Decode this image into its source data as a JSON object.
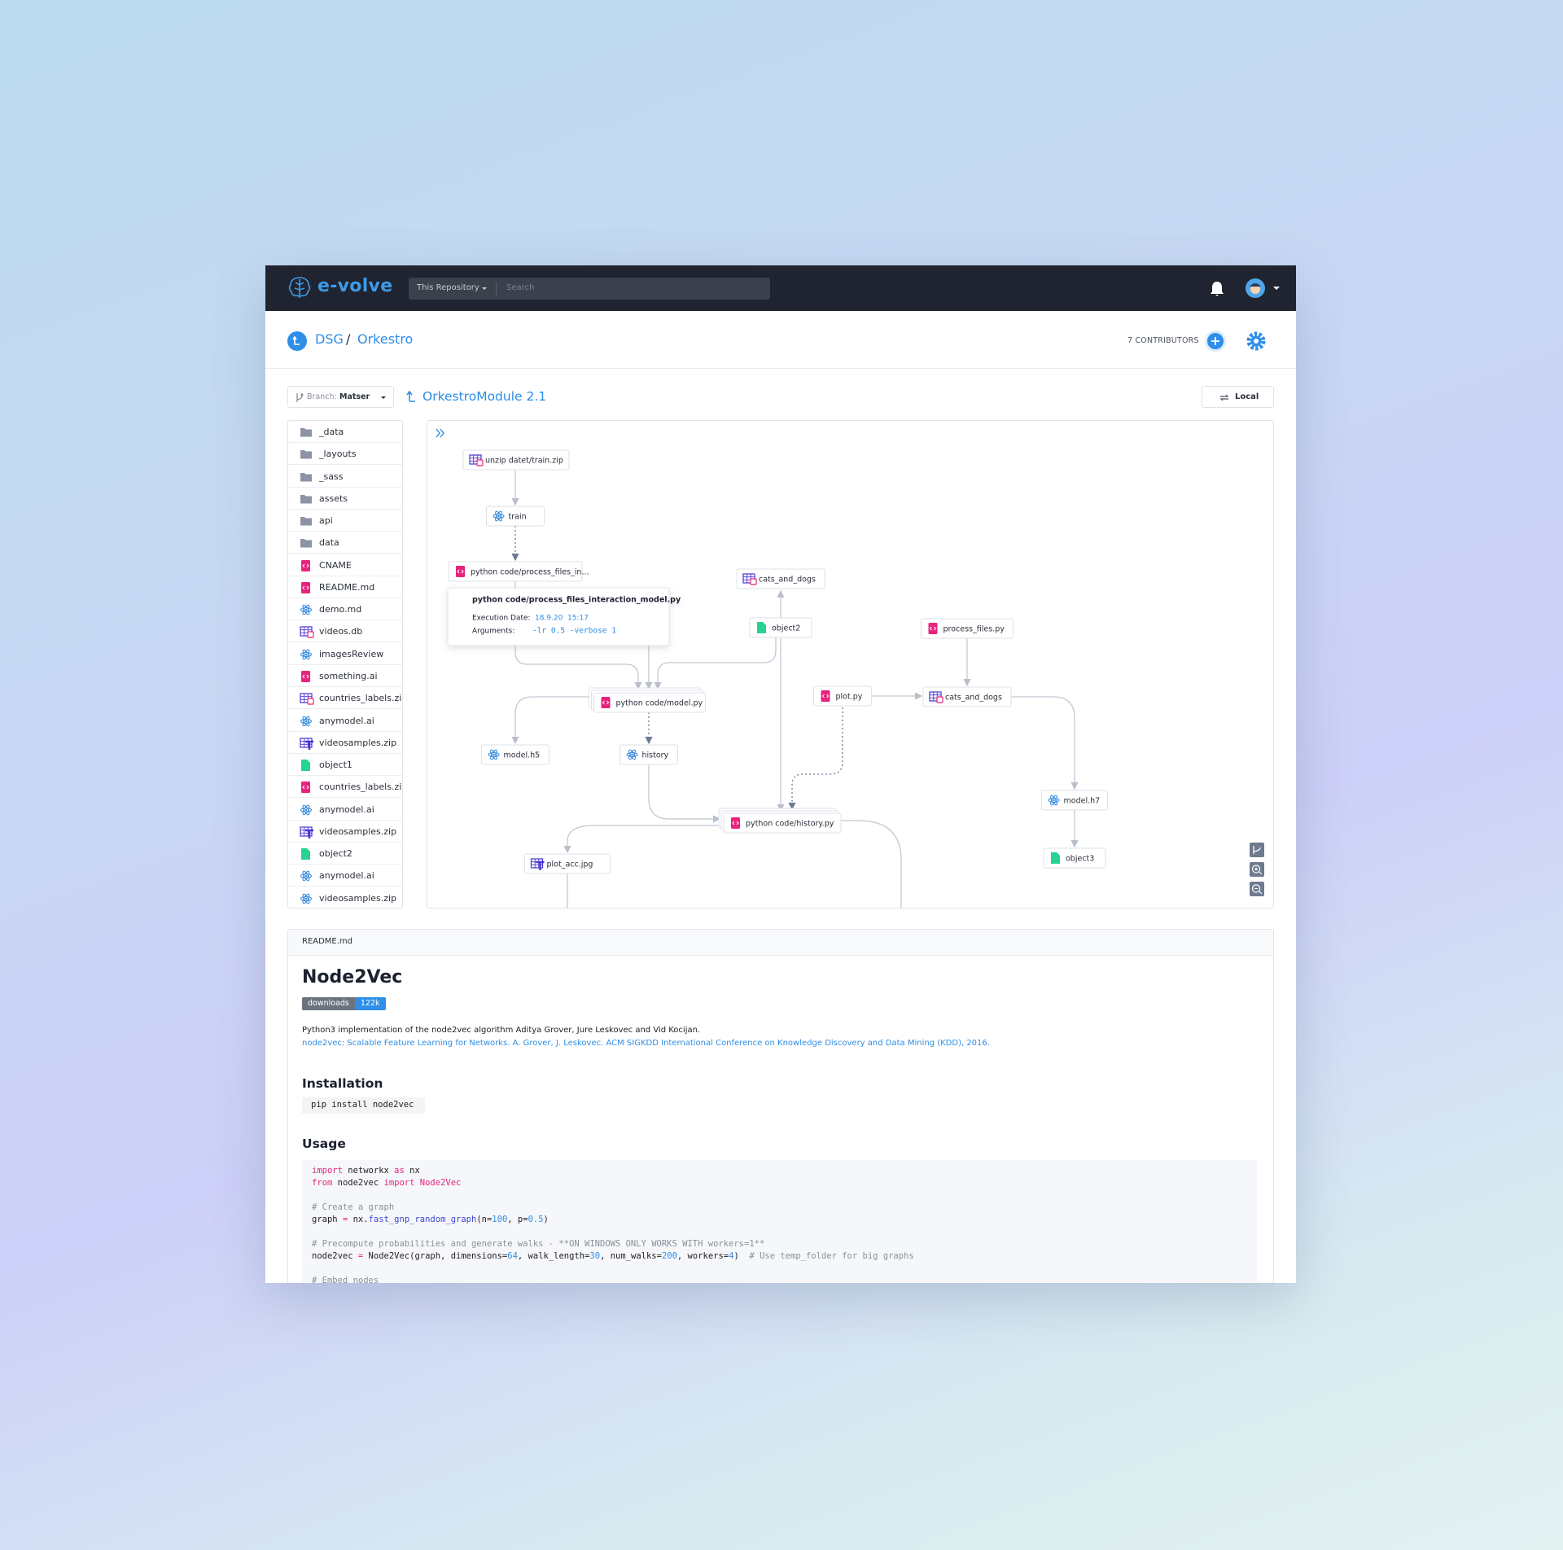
{
  "navbar": {
    "brand": "e-volve",
    "scope": "This Repository",
    "search_placeholder": "Search"
  },
  "breadcrumb": {
    "owner": "DSG",
    "separator": "/",
    "repo": "Orkestro"
  },
  "contributors": "7 CONTRIBUTORS",
  "branch": {
    "label": "Branch:",
    "name": "Matser"
  },
  "module": "OrkestroModule 2.1",
  "mode_button": "Local",
  "files": [
    "_data",
    "_layouts",
    "_sass",
    "assets",
    "api",
    "data",
    "CNAME",
    "README.md",
    "demo.md",
    "videos.db",
    "imagesReview",
    "something.ai",
    "countries_labels.zip",
    "anymodel.ai",
    "videosamples.zip",
    "object1",
    "countries_labels.zip",
    "anymodel.ai",
    "videosamples.zip",
    "object2",
    "anymodel.ai",
    "videosamples.zip"
  ],
  "graph": {
    "nodes": [
      "unzip datet/train.zip",
      "train",
      "python code/process_files_in...",
      "cats_and_dogs",
      "object2",
      "process_files.py",
      "python code/model.py",
      "plot.py",
      "cats_and_dogs",
      "model.h5",
      "history",
      "model.h7",
      "python code/history.py",
      "object3",
      "plot_acc.jpg"
    ],
    "tooltip": {
      "title": "python code/process_files_interaction_model.py",
      "date_label": "Execution Date:",
      "date": "18.9.20  15:17",
      "args_label": "Arguments:",
      "args": "-lr 0.5 -verbose 1"
    }
  },
  "readme": {
    "filename": "README.md",
    "title": "Node2Vec",
    "badge": {
      "label": "downloads",
      "value": "122k"
    },
    "description": "Python3 implementation of the node2vec algorithm Aditya Grover, Jure Leskovec and Vid Kocijan.",
    "reference": "node2vec: Scalable Feature Learning for Networks. A. Grover, J. Leskovec. ACM SIGKDD International Conference on Knowledge Discovery and Data Mining (KDD), 2016.",
    "install_heading": "Installation",
    "install_command": "pip install node2vec",
    "usage_heading": "Usage",
    "code": [
      [
        {
          "text": "import",
          "color": "#e0267d"
        },
        {
          "text": " networkx "
        },
        {
          "text": "as",
          "color": "#e0267d"
        },
        {
          "text": " nx"
        }
      ],
      [
        {
          "text": "from",
          "color": "#e0267d"
        },
        {
          "text": " node2vec "
        },
        {
          "text": "import",
          "color": "#e0267d"
        },
        {
          "text": " "
        },
        {
          "text": "Node2Vec",
          "color": "#e0267d"
        }
      ],
      [],
      [
        {
          "text": "# Create a graph",
          "color": "#8a8f99"
        }
      ],
      [
        {
          "text": "graph "
        },
        {
          "text": "=",
          "color": "#e0267d"
        },
        {
          "text": " nx."
        },
        {
          "text": "fast_gnp_random_graph",
          "color": "#3b46d6"
        },
        {
          "text": "(n="
        },
        {
          "text": "100",
          "color": "#2f8fe8"
        },
        {
          "text": ", p="
        },
        {
          "text": "0.5",
          "color": "#2f8fe8"
        },
        {
          "text": ")"
        }
      ],
      [],
      [
        {
          "text": "# Precompute probabilities and generate walks - **ON WINDOWS ONLY WORKS WITH workers=1**",
          "color": "#8a8f99"
        }
      ],
      [
        {
          "text": "node2vec "
        },
        {
          "text": "=",
          "color": "#e0267d"
        },
        {
          "text": " Node2Vec(graph, dimensions="
        },
        {
          "text": "64",
          "color": "#2f8fe8"
        },
        {
          "text": ", walk_length="
        },
        {
          "text": "30",
          "color": "#2f8fe8"
        },
        {
          "text": ", num_walks="
        },
        {
          "text": "200",
          "color": "#2f8fe8"
        },
        {
          "text": ", workers="
        },
        {
          "text": "4",
          "color": "#2f8fe8"
        },
        {
          "text": ")  "
        },
        {
          "text": "# Use temp_folder for big graphs",
          "color": "#8a8f99"
        }
      ],
      [],
      [
        {
          "text": "# Embed nodes",
          "color": "#8a8f99"
        }
      ]
    ]
  }
}
